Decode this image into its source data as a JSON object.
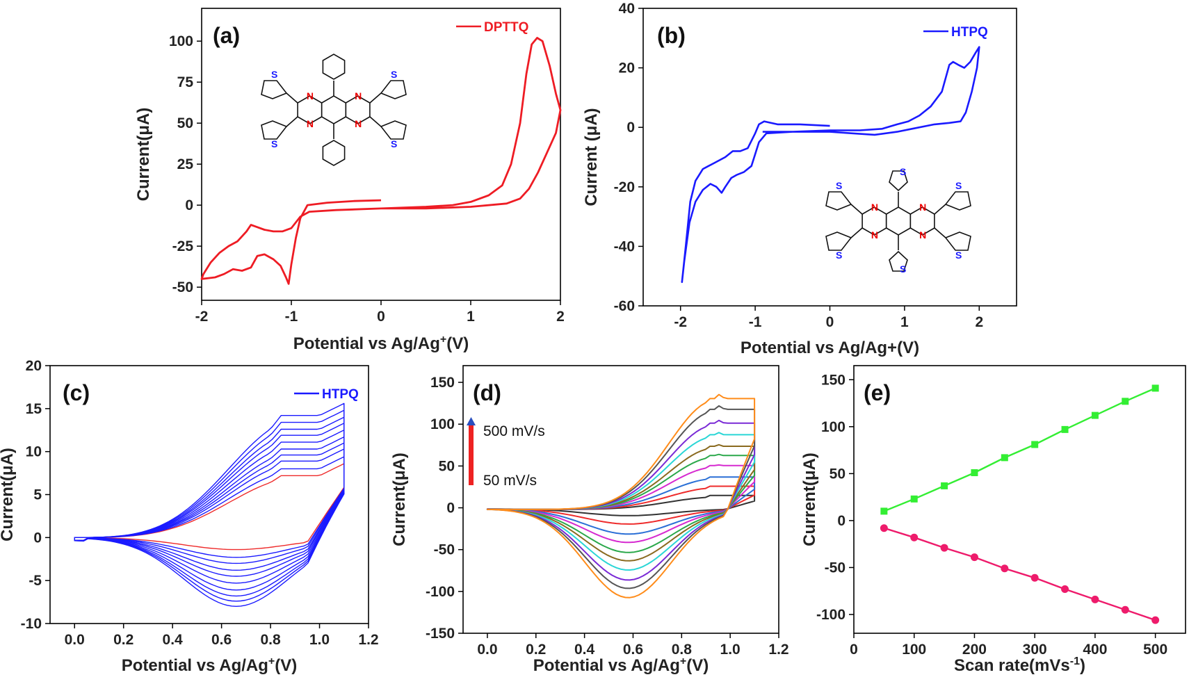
{
  "chart_data": [
    {
      "id": "a",
      "panel_label": "(a)",
      "type": "line",
      "xlabel": "Potential vs Ag/Ag",
      "xlabel_sup": "+",
      "xlabel_suffix": "(V)",
      "ylabel": "Current(μA)",
      "xlim": [
        -2,
        2
      ],
      "ylim": [
        -58,
        120
      ],
      "xticks": [
        -2,
        -1,
        0,
        1,
        2
      ],
      "yticks": [
        -50,
        -25,
        0,
        25,
        50,
        75,
        100
      ],
      "legend": "DPTTQ",
      "legend_position": "top-right",
      "color": "#ee1c24",
      "series": [
        {
          "name": "DPTTQ",
          "color": "#ee1c24",
          "points": [
            [
              0,
              3
            ],
            [
              -0.3,
              2.5
            ],
            [
              -0.6,
              1.5
            ],
            [
              -0.82,
              0
            ],
            [
              -0.9,
              -8
            ],
            [
              -0.95,
              -20
            ],
            [
              -1.0,
              -36
            ],
            [
              -1.03,
              -48
            ],
            [
              -1.06,
              -44
            ],
            [
              -1.12,
              -37
            ],
            [
              -1.2,
              -33
            ],
            [
              -1.3,
              -30
            ],
            [
              -1.38,
              -31
            ],
            [
              -1.45,
              -38
            ],
            [
              -1.55,
              -40
            ],
            [
              -1.65,
              -39
            ],
            [
              -1.75,
              -42
            ],
            [
              -1.85,
              -44
            ],
            [
              -2.0,
              -45
            ],
            [
              -1.98,
              -42
            ],
            [
              -1.9,
              -35
            ],
            [
              -1.8,
              -29
            ],
            [
              -1.7,
              -25
            ],
            [
              -1.6,
              -22
            ],
            [
              -1.5,
              -16
            ],
            [
              -1.45,
              -12
            ],
            [
              -1.4,
              -13
            ],
            [
              -1.3,
              -15
            ],
            [
              -1.2,
              -16
            ],
            [
              -1.1,
              -16
            ],
            [
              -1.0,
              -14
            ],
            [
              -0.9,
              -7
            ],
            [
              -0.8,
              -4
            ],
            [
              -0.5,
              -3
            ],
            [
              0,
              -2
            ],
            [
              0.5,
              -1
            ],
            [
              0.8,
              0
            ],
            [
              1.0,
              2
            ],
            [
              1.2,
              6
            ],
            [
              1.35,
              12
            ],
            [
              1.45,
              25
            ],
            [
              1.55,
              50
            ],
            [
              1.62,
              80
            ],
            [
              1.68,
              98
            ],
            [
              1.74,
              102
            ],
            [
              1.8,
              100
            ],
            [
              1.88,
              85
            ],
            [
              1.95,
              68
            ],
            [
              2.0,
              58
            ],
            [
              1.95,
              44
            ],
            [
              1.85,
              32
            ],
            [
              1.75,
              20
            ],
            [
              1.65,
              10
            ],
            [
              1.55,
              4
            ],
            [
              1.4,
              1
            ],
            [
              1.0,
              -1
            ],
            [
              0.5,
              -2
            ],
            [
              0,
              -2
            ]
          ]
        }
      ]
    },
    {
      "id": "b",
      "panel_label": "(b)",
      "type": "line",
      "xlabel": "Potential vs Ag/Ag+(V)",
      "ylabel": "Current (μA)",
      "xlim": [
        -2.5,
        2.5
      ],
      "ylim": [
        -60,
        40
      ],
      "xticks": [
        -2,
        -1,
        0,
        1,
        2
      ],
      "yticks": [
        -60,
        -40,
        -20,
        0,
        20,
        40
      ],
      "legend": "HTPQ",
      "legend_position": "top-right",
      "color": "#1a1aff",
      "series": [
        {
          "name": "HTPQ",
          "color": "#1a1aff",
          "points": [
            [
              0,
              0.5
            ],
            [
              -0.4,
              1
            ],
            [
              -0.7,
              1
            ],
            [
              -0.88,
              2
            ],
            [
              -0.95,
              1
            ],
            [
              -1.0,
              -2
            ],
            [
              -1.1,
              -7
            ],
            [
              -1.2,
              -8
            ],
            [
              -1.3,
              -8
            ],
            [
              -1.4,
              -10
            ],
            [
              -1.55,
              -12
            ],
            [
              -1.7,
              -14
            ],
            [
              -1.8,
              -18
            ],
            [
              -1.87,
              -25
            ],
            [
              -1.93,
              -40
            ],
            [
              -1.98,
              -52
            ],
            [
              -1.95,
              -45
            ],
            [
              -1.88,
              -32
            ],
            [
              -1.8,
              -25
            ],
            [
              -1.7,
              -21
            ],
            [
              -1.6,
              -19
            ],
            [
              -1.52,
              -20
            ],
            [
              -1.45,
              -22
            ],
            [
              -1.4,
              -20
            ],
            [
              -1.32,
              -17
            ],
            [
              -1.25,
              -16
            ],
            [
              -1.15,
              -15
            ],
            [
              -1.05,
              -13
            ],
            [
              -0.95,
              -5
            ],
            [
              -0.85,
              -2
            ],
            [
              -0.5,
              -1.5
            ],
            [
              0,
              -1
            ],
            [
              0.4,
              -1
            ],
            [
              0.7,
              -0.5
            ],
            [
              0.9,
              1
            ],
            [
              1.05,
              2
            ],
            [
              1.2,
              4
            ],
            [
              1.35,
              7
            ],
            [
              1.5,
              12
            ],
            [
              1.6,
              21
            ],
            [
              1.65,
              22
            ],
            [
              1.72,
              21
            ],
            [
              1.8,
              20
            ],
            [
              1.88,
              22
            ],
            [
              1.95,
              25
            ],
            [
              2.0,
              27
            ],
            [
              1.97,
              20
            ],
            [
              1.9,
              12
            ],
            [
              1.82,
              5
            ],
            [
              1.75,
              2
            ],
            [
              1.6,
              1.5
            ],
            [
              1.4,
              1
            ],
            [
              1.1,
              -0.5
            ],
            [
              0.9,
              -1.5
            ],
            [
              0.6,
              -2.5
            ],
            [
              0.3,
              -2
            ],
            [
              0,
              -1.5
            ],
            [
              -0.5,
              -1.5
            ],
            [
              -0.9,
              -1.5
            ]
          ]
        }
      ]
    },
    {
      "id": "c",
      "panel_label": "(c)",
      "type": "line",
      "xlabel": "Potential vs Ag/Ag",
      "xlabel_sup": "+",
      "xlabel_suffix": "(V)",
      "ylabel": "Current(μA)",
      "xlim": [
        -0.1,
        1.2
      ],
      "ylim": [
        -10,
        20
      ],
      "xticks": [
        0.0,
        0.2,
        0.4,
        0.6,
        0.8,
        1.0,
        1.2
      ],
      "yticks": [
        -10,
        -5,
        0,
        5,
        10,
        15,
        20
      ],
      "legend": "HTPQ",
      "legend_position": "top-right",
      "scan_rates_mVs": [
        50,
        100,
        150,
        200,
        250,
        300,
        350,
        400,
        450,
        500
      ],
      "anodic_peak_uA": [
        7.2,
        8.0,
        8.9,
        9.6,
        10.3,
        11.1,
        11.9,
        12.6,
        13.4,
        14.2
      ],
      "cathodic_min_uA": [
        -1.4,
        -2.3,
        -3.0,
        -3.8,
        -4.5,
        -5.3,
        -6.1,
        -6.8,
        -7.4,
        -8.0
      ],
      "curve_colors": [
        "#ee2b2b",
        "#1a1aff"
      ]
    },
    {
      "id": "d",
      "panel_label": "(d)",
      "type": "line",
      "xlabel": "Potential vs Ag/Ag",
      "xlabel_sup": "+",
      "xlabel_suffix": "(V)",
      "ylabel": "Current(μA)",
      "xlim": [
        -0.1,
        1.2
      ],
      "ylim": [
        -150,
        170
      ],
      "xticks": [
        0.0,
        0.2,
        0.4,
        0.6,
        0.8,
        1.0,
        1.2
      ],
      "yticks": [
        -150,
        -100,
        -50,
        0,
        50,
        100,
        150
      ],
      "annotation_top": "500 mV/s",
      "annotation_bottom": "50 mV/s",
      "scan_rates_mVs": [
        50,
        100,
        150,
        200,
        250,
        300,
        350,
        400,
        450,
        500
      ],
      "anodic_peak_uA": [
        16,
        28,
        40,
        55,
        68,
        80,
        95,
        110,
        128,
        142
      ],
      "cathodic_min_uA": [
        -8,
        -18,
        -30,
        -40,
        -52,
        -62,
        -73,
        -85,
        -95,
        -106
      ],
      "curve_colors": [
        "#333333",
        "#ee2b2b",
        "#2a6fd6",
        "#d62ad0",
        "#2aa84a",
        "#8a6a1f",
        "#2ad6d6",
        "#7a2ad6",
        "#555555",
        "#ff8c1a"
      ]
    },
    {
      "id": "e",
      "panel_label": "(e)",
      "type": "scatter",
      "xlabel": "Scan rate(mVs",
      "xlabel_sup": "-1",
      "xlabel_suffix": ")",
      "ylabel": "Current(μA)",
      "xlim": [
        0,
        550
      ],
      "ylim": [
        -120,
        165
      ],
      "xticks": [
        0,
        100,
        200,
        300,
        400,
        500
      ],
      "yticks": [
        -100,
        -50,
        0,
        50,
        100,
        150
      ],
      "x": [
        50,
        100,
        150,
        200,
        250,
        300,
        350,
        400,
        450,
        500
      ],
      "series": [
        {
          "color": "#33ee33",
          "values": [
            10,
            23,
            37,
            51,
            67,
            81,
            97,
            112,
            127,
            141
          ]
        },
        {
          "color": "#ee1b6b",
          "values": [
            -8,
            -18,
            -29,
            -39,
            -51,
            -61,
            -73,
            -84,
            -95,
            -106
          ]
        }
      ]
    }
  ]
}
